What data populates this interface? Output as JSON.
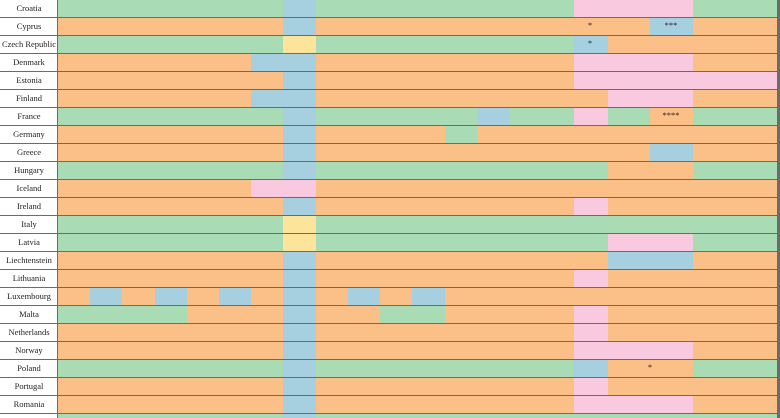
{
  "rows": [
    {
      "label": "Croatia"
    },
    {
      "label": "Cyprus",
      "notes": [
        "*",
        "***"
      ]
    },
    {
      "label": "Czech Republic",
      "notes": [
        "*"
      ]
    },
    {
      "label": "Denmark"
    },
    {
      "label": "Estonia"
    },
    {
      "label": "Finland"
    },
    {
      "label": "France",
      "notes": [
        "****"
      ]
    },
    {
      "label": "Germany"
    },
    {
      "label": "Greece"
    },
    {
      "label": "Hungary"
    },
    {
      "label": "Iceland"
    },
    {
      "label": "Ireland"
    },
    {
      "label": "Italy"
    },
    {
      "label": "Latvia"
    },
    {
      "label": "Liechtenstein"
    },
    {
      "label": "Lithuania"
    },
    {
      "label": "Luxembourg"
    },
    {
      "label": "Malta"
    },
    {
      "label": "Netherlands"
    },
    {
      "label": "Norway"
    },
    {
      "label": "Poland",
      "notes": [
        "*"
      ]
    },
    {
      "label": "Portugal"
    },
    {
      "label": "Romania"
    }
  ]
}
